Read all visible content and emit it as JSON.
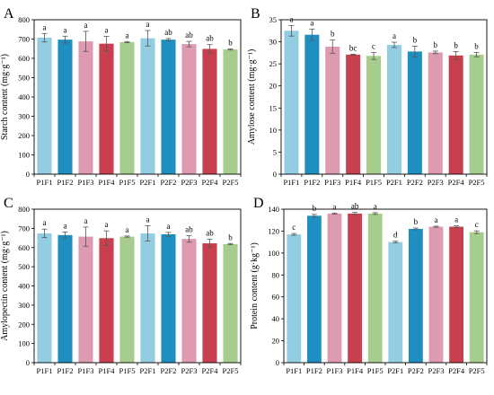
{
  "categories": [
    "P1F1",
    "P1F2",
    "P1F3",
    "P1F4",
    "P1F5",
    "P2F1",
    "P2F2",
    "P2F3",
    "P2F4",
    "P2F5"
  ],
  "colors": [
    "#93cde2",
    "#1f8fc2",
    "#de9aae",
    "#c8404e",
    "#a7cd8e",
    "#93cde2",
    "#1f8fc2",
    "#de9aae",
    "#c8404e",
    "#a7cd8e"
  ],
  "chart_data": [
    {
      "type": "bar",
      "panel_label": "A",
      "ylabel": "Starch content (mg·g⁻¹)",
      "ylim": [
        0,
        800
      ],
      "yticks": [
        0,
        100,
        200,
        300,
        400,
        500,
        600,
        700,
        800
      ],
      "categories": [
        "P1F1",
        "P1F2",
        "P1F3",
        "P1F4",
        "P1F5",
        "P2F1",
        "P2F2",
        "P2F3",
        "P2F4",
        "P2F5"
      ],
      "values": [
        707,
        697,
        688,
        676,
        684,
        704,
        697,
        674,
        649,
        646
      ],
      "errors": [
        22,
        18,
        52,
        38,
        3,
        40,
        6,
        14,
        22,
        3
      ],
      "letters": [
        "a",
        "a",
        "a",
        "a",
        "a",
        "a",
        "ab",
        "ab",
        "ab",
        "b"
      ]
    },
    {
      "type": "bar",
      "panel_label": "B",
      "ylabel": "Amylose content (mg·g⁻¹)",
      "ylim": [
        0,
        35
      ],
      "yticks": [
        0,
        5,
        10,
        15,
        20,
        25,
        30,
        35
      ],
      "categories": [
        "P1F1",
        "P1F2",
        "P1F3",
        "P1F4",
        "P1F5",
        "P2F1",
        "P2F2",
        "P2F3",
        "P2F4",
        "P2F5"
      ],
      "values": [
        32.5,
        31.6,
        28.9,
        27.1,
        26.8,
        29.3,
        27.8,
        27.6,
        26.9,
        27.1
      ],
      "errors": [
        1.2,
        1.3,
        1.5,
        0.1,
        0.8,
        0.6,
        1.2,
        0.3,
        0.9,
        0.5
      ],
      "letters": [
        "a",
        "a",
        "b",
        "bc",
        "c",
        "a",
        "b",
        "b",
        "b",
        "b"
      ]
    },
    {
      "type": "bar",
      "panel_label": "C",
      "ylabel": "Amylopectin content (mg·g⁻¹)",
      "ylim": [
        0,
        800
      ],
      "yticks": [
        0,
        100,
        200,
        300,
        400,
        500,
        600,
        700,
        800
      ],
      "categories": [
        "P1F1",
        "P1F2",
        "P1F3",
        "P1F4",
        "P1F5",
        "P2F1",
        "P2F2",
        "P2F3",
        "P2F4",
        "P2F5"
      ],
      "values": [
        674,
        665,
        657,
        649,
        657,
        674,
        669,
        645,
        622,
        618
      ],
      "errors": [
        22,
        16,
        50,
        38,
        3,
        40,
        10,
        17,
        21,
        3
      ],
      "letters": [
        "a",
        "a",
        "a",
        "a",
        "a",
        "a",
        "a",
        "ab",
        "ab",
        "b"
      ]
    },
    {
      "type": "bar",
      "panel_label": "D",
      "ylabel": "Protein content (g·kg⁻¹)",
      "ylim": [
        0,
        140
      ],
      "yticks": [
        0,
        20,
        40,
        60,
        80,
        100,
        120,
        140
      ],
      "categories": [
        "P1F1",
        "P1F2",
        "P1F3",
        "P1F4",
        "P1F5",
        "P2F1",
        "P2F2",
        "P2F3",
        "P2F4",
        "P2F5"
      ],
      "values": [
        117,
        134,
        136,
        136,
        136,
        110,
        122,
        124,
        124,
        119
      ],
      "errors": [
        0.8,
        1.2,
        0.5,
        1.0,
        0.8,
        0.8,
        0.8,
        0.5,
        0.8,
        1.2
      ],
      "letters": [
        "c",
        "b",
        "a",
        "ab",
        "a",
        "d",
        "b",
        "a",
        "a",
        "c"
      ]
    }
  ]
}
